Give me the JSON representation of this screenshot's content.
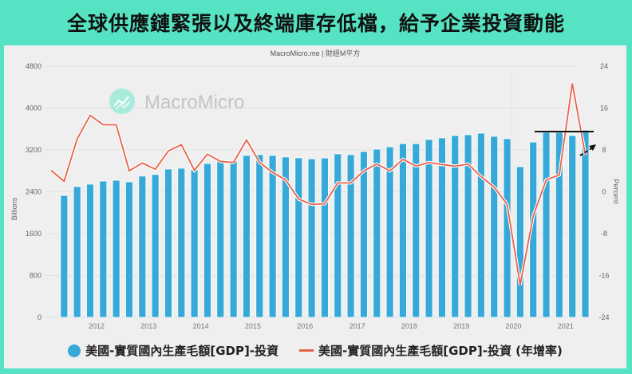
{
  "header": {
    "title": "全球供應鏈緊張以及終端庫存低檔，給予企業投資動能"
  },
  "chart": {
    "source": "MacroMicro.me | 財經M平方",
    "watermark": "MacroMicro",
    "left_axis_label": "Billions",
    "right_axis_label": "Percent",
    "left_ticks": [
      "4800",
      "4000",
      "3200",
      "2400",
      "1600",
      "800",
      "0"
    ],
    "right_ticks": [
      "24",
      "16",
      "8",
      "0",
      "-8",
      "-16",
      "-24"
    ],
    "x_ticks": [
      "2012",
      "2013",
      "2014",
      "2015",
      "2016",
      "2017",
      "2018",
      "2019",
      "2020",
      "2021"
    ],
    "colors": {
      "bar": "#36a9d9",
      "line": "#e8614a",
      "frame": "#55e3c3",
      "annotation": "#111111"
    }
  },
  "legend": {
    "series1": "美國-實質國內生產毛額[GDP]-投資",
    "series2": "美國-實質國內生產毛額[GDP]-投資 (年增率)"
  },
  "chart_data": {
    "type": "bar",
    "title": "全球供應鏈緊張以及終端庫存低檔，給予企業投資動能",
    "subtitle": "MacroMicro.me | 財經M平方",
    "xlabel": "",
    "ylabel": "Billions",
    "y2label": "Percent",
    "ylim": [
      0,
      4800
    ],
    "y2lim": [
      -24,
      24
    ],
    "grid": true,
    "legend_position": "bottom",
    "categories": [
      "2011Q2",
      "2011Q3",
      "2011Q4",
      "2012Q1",
      "2012Q2",
      "2012Q3",
      "2012Q4",
      "2013Q1",
      "2013Q2",
      "2013Q3",
      "2013Q4",
      "2014Q1",
      "2014Q2",
      "2014Q3",
      "2014Q4",
      "2015Q1",
      "2015Q2",
      "2015Q3",
      "2015Q4",
      "2016Q1",
      "2016Q2",
      "2016Q3",
      "2016Q4",
      "2017Q1",
      "2017Q2",
      "2017Q3",
      "2017Q4",
      "2018Q1",
      "2018Q2",
      "2018Q3",
      "2018Q4",
      "2019Q1",
      "2019Q2",
      "2019Q3",
      "2019Q4",
      "2020Q1",
      "2020Q2",
      "2020Q3",
      "2020Q4",
      "2021Q1",
      "2021Q2",
      "2021Q3"
    ],
    "series": [
      {
        "name": "美國-實質國內生產毛額[GDP]-投資",
        "type": "bar",
        "axis": "left",
        "values": [
          null,
          2330,
          2500,
          2545,
          2605,
          2620,
          2590,
          2700,
          2730,
          2835,
          2850,
          2820,
          2940,
          2985,
          2990,
          3095,
          3110,
          3095,
          3065,
          3050,
          3030,
          3045,
          3125,
          3110,
          3170,
          3215,
          3260,
          3320,
          3320,
          3400,
          3430,
          3475,
          3490,
          3520,
          3460,
          3415,
          2880,
          3350,
          3535,
          3535,
          3475,
          3580
        ]
      },
      {
        "name": "美國-實質國內生產毛額[GDP]-投資 (年增率)",
        "type": "line",
        "axis": "right",
        "values": [
          4.1,
          2.0,
          10.1,
          14.6,
          12.8,
          12.8,
          4.0,
          5.5,
          4.3,
          7.8,
          9.0,
          4.1,
          7.2,
          5.8,
          5.6,
          9.9,
          5.6,
          3.7,
          2.3,
          -1.4,
          -2.4,
          -2.3,
          1.7,
          1.7,
          4.0,
          5.3,
          4.0,
          6.2,
          4.9,
          5.6,
          5.2,
          4.9,
          5.3,
          2.9,
          0.9,
          -2.4,
          -17.8,
          -4.6,
          2.3,
          3.2,
          20.7,
          7.0
        ]
      }
    ],
    "annotations": [
      {
        "type": "horizontal-line",
        "y_left": 3510,
        "x_range": [
          "2020Q4",
          "2021Q3"
        ]
      },
      {
        "type": "dashed-arrow",
        "direction": "up-right",
        "near": "2021Q3"
      }
    ]
  }
}
